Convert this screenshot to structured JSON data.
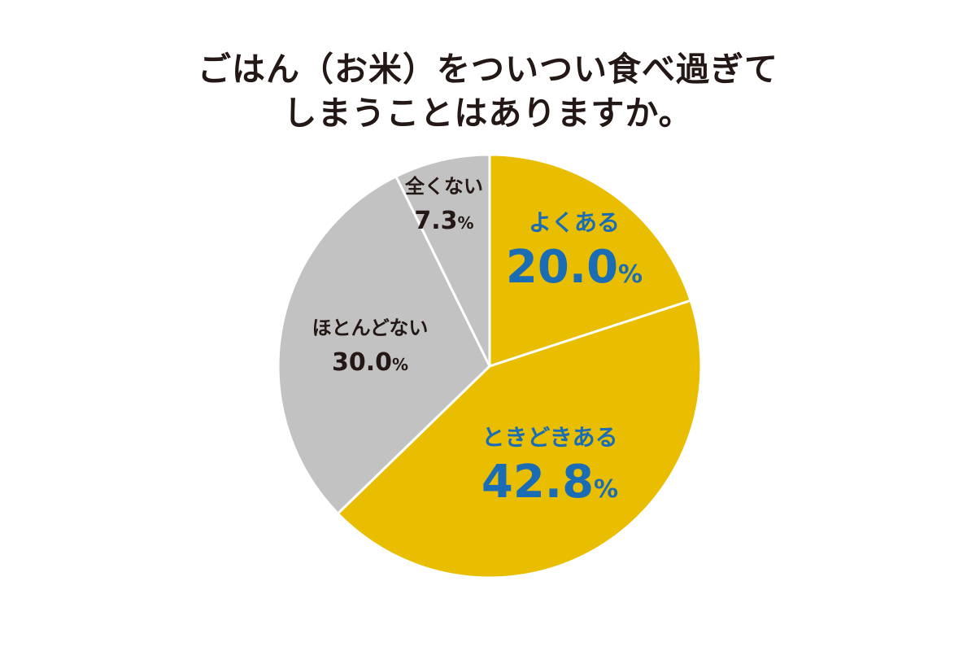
{
  "title": {
    "line1": "ごはん（お米）をついつい食べ過ぎて",
    "line2": "しまうことはありますか。"
  },
  "colors": {
    "yellow": "#E9BE00",
    "gray": "#C2C2C2",
    "blue": "#1A6DB5",
    "dark": "#231815",
    "divider": "#ffffff"
  },
  "chart_data": {
    "type": "pie",
    "title": "ごはん（お米）をついつい食べ過ぎてしまうことはありますか。",
    "start": "12 o'clock",
    "direction": "clockwise",
    "slices": [
      {
        "label": "よくある",
        "value": 20.0,
        "display": "20.0",
        "unit": "%",
        "color": "#E9BE00",
        "label_color": "#1A6DB5",
        "size": "large"
      },
      {
        "label": "ときどきある",
        "value": 42.8,
        "display": "42.8",
        "unit": "%",
        "color": "#E9BE00",
        "label_color": "#1A6DB5",
        "size": "large"
      },
      {
        "label": "ほとんどない",
        "value": 30.0,
        "display": "30.0",
        "unit": "%",
        "color": "#C2C2C2",
        "label_color": "#231815",
        "size": "small"
      },
      {
        "label": "全くない",
        "value": 7.3,
        "display": "7.3",
        "unit": "%",
        "color": "#C2C2C2",
        "label_color": "#231815",
        "size": "small"
      }
    ]
  }
}
